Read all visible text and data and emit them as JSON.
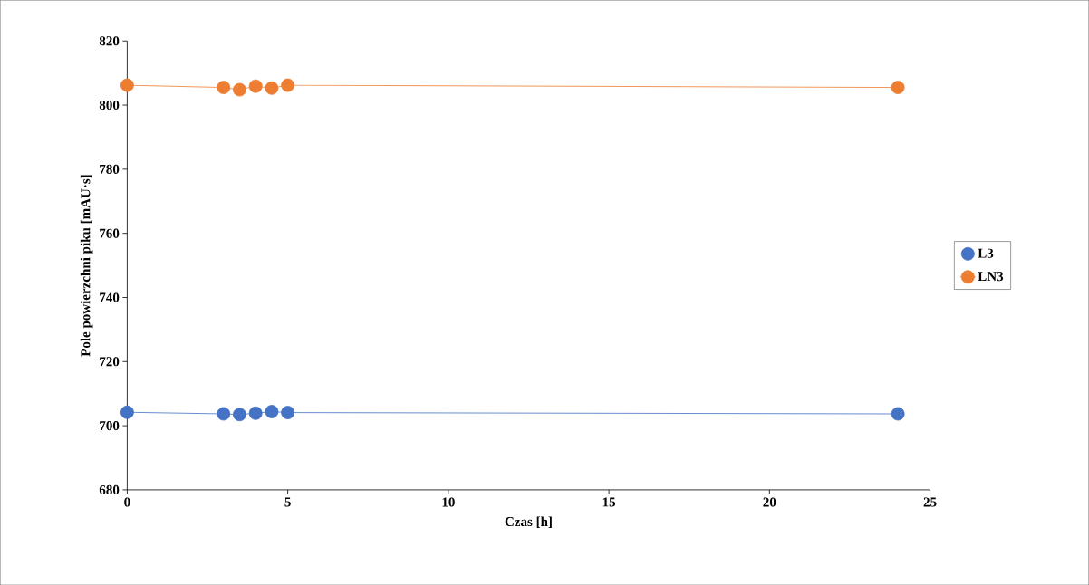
{
  "chart_data": {
    "type": "line",
    "xlabel": "Czas [h]",
    "ylabel": "Pole powierzchni piku [mAU·s]",
    "xlim": [
      0,
      25
    ],
    "xticks": [
      0,
      5,
      10,
      15,
      20,
      25
    ],
    "ylim": [
      680,
      820
    ],
    "yticks": [
      680,
      700,
      720,
      740,
      760,
      780,
      800,
      820
    ],
    "marker": "circle",
    "legend": "right",
    "grid": false,
    "series": [
      {
        "name": "L3",
        "color": "#4472c4",
        "x": [
          0,
          3,
          3.5,
          4,
          4.5,
          5,
          24
        ],
        "values": [
          704.2,
          703.7,
          703.5,
          703.9,
          704.4,
          704.1,
          703.7
        ]
      },
      {
        "name": "LN3",
        "color": "#ed7d31",
        "x": [
          0,
          3,
          3.5,
          4,
          4.5,
          5,
          24
        ],
        "values": [
          806.2,
          805.5,
          804.8,
          805.9,
          805.3,
          806.2,
          805.5
        ]
      }
    ]
  }
}
